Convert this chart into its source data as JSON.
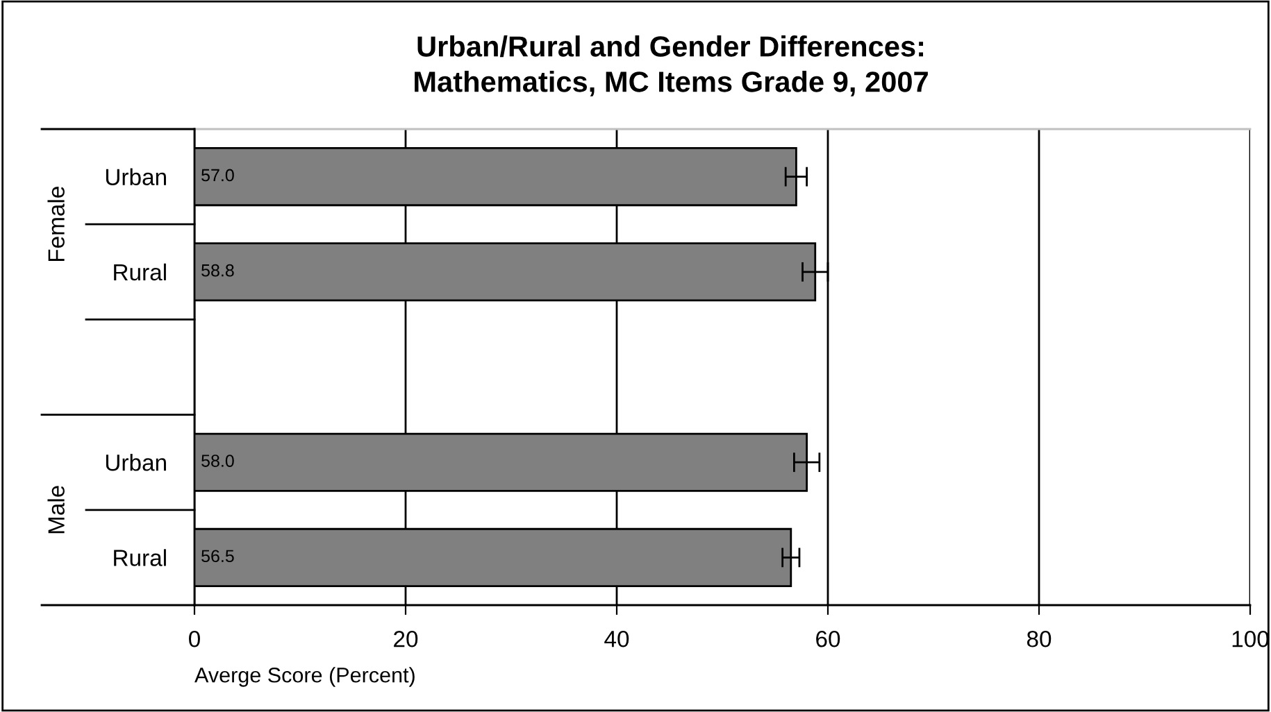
{
  "chart_data": {
    "type": "bar",
    "orientation": "horizontal",
    "title": "Urban/Rural and Gender Differences:\nMathematics, MC Items Grade 9, 2007",
    "categories": [
      "Urban",
      "Rural",
      null,
      "Urban",
      "Rural"
    ],
    "values": [
      57.0,
      58.8,
      null,
      58.0,
      56.5
    ],
    "errors": [
      1.0,
      1.2,
      null,
      1.2,
      0.8
    ],
    "color": "#808080",
    "xlim": [
      0,
      100
    ],
    "xticks": [
      0,
      20,
      40,
      60,
      80,
      100
    ],
    "xlabel": "Averge Score (Percent)",
    "annotations": [
      "Female",
      "Male"
    ],
    "value_labels": [
      "57.0",
      "58.8",
      null,
      "58.0",
      "56.5"
    ],
    "grid": "x"
  }
}
